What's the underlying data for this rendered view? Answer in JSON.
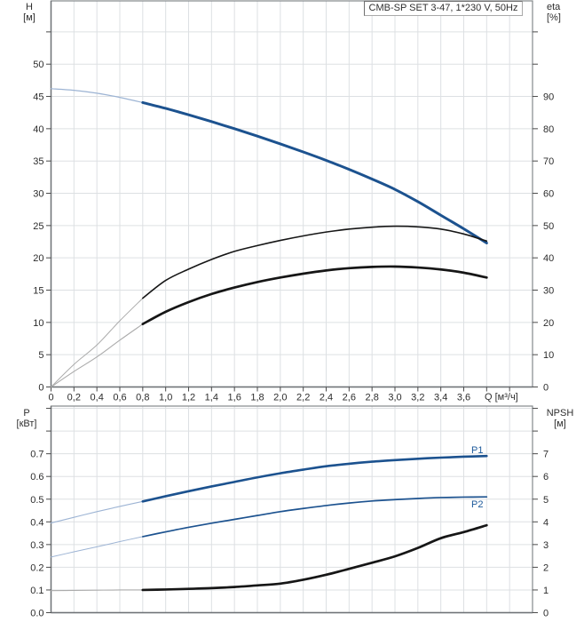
{
  "title": "CMB-SP SET 3-47, 1*230 V, 50Hz",
  "axis_names": {
    "top_left": {
      "name": "H",
      "unit": "[м]"
    },
    "top_right": {
      "name": "eta",
      "unit": "[%]"
    },
    "bottom_left": {
      "name": "P",
      "unit": "[кВт]"
    },
    "bottom_right": {
      "name": "NPSH",
      "unit": "[м]"
    },
    "flow_unit": "Q [м³/ч]"
  },
  "curve_labels": {
    "p1": "P1",
    "p2": "P2"
  },
  "colors": {
    "curve_blue": "#1c528f",
    "curve_blue_thin": "#9db4d4",
    "curve_black": "#161616",
    "curve_black_thin": "#ababab",
    "grid": "#dde0e3",
    "frame": "#84888b",
    "tick": "#4a4a4a",
    "text": "#2c2c2c",
    "label_blue": "#1d5a9b"
  },
  "chart_data": [
    {
      "type": "line",
      "title": "CMB-SP SET 3-47, 1*230 V, 50Hz — head and efficiency curves",
      "x": {
        "label": "Q [м³/ч]",
        "min": 0,
        "max": 4.2,
        "grid_step": 0.2,
        "tick_labels": [
          "0",
          "0,2",
          "0,4",
          "0,6",
          "0,8",
          "1,0",
          "1,2",
          "1,4",
          "1,6",
          "1,8",
          "2,0",
          "2,2",
          "2,4",
          "2,6",
          "2,8",
          "3,0",
          "3,2",
          "3,4",
          "3,6"
        ]
      },
      "y_left": {
        "label": "H [м]",
        "min": 0,
        "max": 59.8,
        "grid_step": 5,
        "tick_labels": [
          "0",
          "5",
          "10",
          "15",
          "20",
          "25",
          "30",
          "35",
          "40",
          "45",
          "50"
        ]
      },
      "y_right": {
        "label": "eta [%]",
        "min": 0,
        "max": 119.6,
        "tick_step": 10,
        "tick_labels": [
          "0",
          "10",
          "20",
          "30",
          "40",
          "50",
          "60",
          "70",
          "80",
          "90"
        ]
      },
      "grid": true,
      "series": [
        {
          "name": "H",
          "axis": "left",
          "style": "blue-thick",
          "thin_until": 0.8,
          "points": [
            [
              0,
              46.2
            ],
            [
              0.2,
              45.95
            ],
            [
              0.4,
              45.5
            ],
            [
              0.6,
              44.85
            ],
            [
              0.8,
              44.05
            ],
            [
              1.0,
              43.15
            ],
            [
              1.2,
              42.15
            ],
            [
              1.4,
              41.1
            ],
            [
              1.6,
              40.0
            ],
            [
              1.8,
              38.85
            ],
            [
              2.0,
              37.65
            ],
            [
              2.2,
              36.4
            ],
            [
              2.4,
              35.1
            ],
            [
              2.6,
              33.7
            ],
            [
              2.8,
              32.2
            ],
            [
              3.0,
              30.6
            ],
            [
              3.2,
              28.7
            ],
            [
              3.4,
              26.6
            ],
            [
              3.6,
              24.5
            ],
            [
              3.8,
              22.3
            ]
          ]
        },
        {
          "name": "eta-upper",
          "axis": "right",
          "style": "black-thin",
          "thin_until": 0.8,
          "points": [
            [
              0,
              0
            ],
            [
              0.2,
              7
            ],
            [
              0.4,
              13
            ],
            [
              0.6,
              20.5
            ],
            [
              0.8,
              27.5
            ],
            [
              1.0,
              33
            ],
            [
              1.2,
              36.5
            ],
            [
              1.4,
              39.5
            ],
            [
              1.6,
              42
            ],
            [
              1.8,
              43.8
            ],
            [
              2.0,
              45.4
            ],
            [
              2.2,
              46.8
            ],
            [
              2.4,
              48
            ],
            [
              2.6,
              48.9
            ],
            [
              2.8,
              49.5
            ],
            [
              3.0,
              49.8
            ],
            [
              3.2,
              49.6
            ],
            [
              3.4,
              48.9
            ],
            [
              3.6,
              47.4
            ],
            [
              3.8,
              45.2
            ]
          ]
        },
        {
          "name": "eta-lower",
          "axis": "right",
          "style": "black-thick",
          "thin_until": 0.8,
          "points": [
            [
              0,
              0
            ],
            [
              0.2,
              4.8
            ],
            [
              0.4,
              9.3
            ],
            [
              0.6,
              14.5
            ],
            [
              0.8,
              19.5
            ],
            [
              1.0,
              23.3
            ],
            [
              1.2,
              26.3
            ],
            [
              1.4,
              28.8
            ],
            [
              1.6,
              30.8
            ],
            [
              1.8,
              32.5
            ],
            [
              2.0,
              33.9
            ],
            [
              2.2,
              35.1
            ],
            [
              2.4,
              36.1
            ],
            [
              2.6,
              36.8
            ],
            [
              2.8,
              37.2
            ],
            [
              3.0,
              37.3
            ],
            [
              3.2,
              37.0
            ],
            [
              3.4,
              36.4
            ],
            [
              3.6,
              35.4
            ],
            [
              3.8,
              33.9
            ]
          ]
        }
      ]
    },
    {
      "type": "line",
      "title": "Power (P1, P2) and NPSH curves",
      "x": {
        "label": "",
        "min": 0,
        "max": 4.2,
        "grid_step": 0.2,
        "tick_labels": []
      },
      "y_left": {
        "label": "P [кВт]",
        "min": 0,
        "max": 0.91,
        "grid_step": 0.1,
        "tick_labels": [
          "0.0",
          "0.1",
          "0.2",
          "0.3",
          "0.4",
          "0.5",
          "0.6",
          "0.7"
        ]
      },
      "y_right": {
        "label": "NPSH [м]",
        "min": 0,
        "max": 9.1,
        "tick_step": 1,
        "tick_labels": [
          "0",
          "1",
          "2",
          "3",
          "4",
          "5",
          "6",
          "7"
        ]
      },
      "grid": true,
      "series": [
        {
          "name": "P1",
          "axis": "left",
          "style": "blue-thick2",
          "thin_until": 0.8,
          "points": [
            [
              0,
              0.395
            ],
            [
              0.2,
              0.42
            ],
            [
              0.4,
              0.445
            ],
            [
              0.6,
              0.468
            ],
            [
              0.8,
              0.49
            ],
            [
              1.0,
              0.513
            ],
            [
              1.2,
              0.535
            ],
            [
              1.4,
              0.556
            ],
            [
              1.6,
              0.576
            ],
            [
              1.8,
              0.596
            ],
            [
              2.0,
              0.614
            ],
            [
              2.2,
              0.63
            ],
            [
              2.4,
              0.645
            ],
            [
              2.6,
              0.656
            ],
            [
              2.8,
              0.665
            ],
            [
              3.0,
              0.672
            ],
            [
              3.2,
              0.678
            ],
            [
              3.4,
              0.683
            ],
            [
              3.6,
              0.687
            ],
            [
              3.8,
              0.69
            ]
          ]
        },
        {
          "name": "P2",
          "axis": "left",
          "style": "blue-medium",
          "thin_until": 0.8,
          "points": [
            [
              0,
              0.245
            ],
            [
              0.2,
              0.268
            ],
            [
              0.4,
              0.29
            ],
            [
              0.6,
              0.313
            ],
            [
              0.8,
              0.335
            ],
            [
              1.0,
              0.356
            ],
            [
              1.2,
              0.376
            ],
            [
              1.4,
              0.394
            ],
            [
              1.6,
              0.411
            ],
            [
              1.8,
              0.428
            ],
            [
              2.0,
              0.445
            ],
            [
              2.2,
              0.459
            ],
            [
              2.4,
              0.472
            ],
            [
              2.6,
              0.483
            ],
            [
              2.8,
              0.492
            ],
            [
              3.0,
              0.498
            ],
            [
              3.2,
              0.503
            ],
            [
              3.4,
              0.507
            ],
            [
              3.6,
              0.509
            ],
            [
              3.8,
              0.51
            ]
          ]
        },
        {
          "name": "NPSH",
          "axis": "right",
          "style": "black-thick",
          "thin_until": 0.8,
          "points": [
            [
              0,
              0.97
            ],
            [
              0.2,
              0.98
            ],
            [
              0.4,
              0.99
            ],
            [
              0.6,
              1.0
            ],
            [
              0.8,
              1.0
            ],
            [
              1.0,
              1.02
            ],
            [
              1.2,
              1.05
            ],
            [
              1.4,
              1.08
            ],
            [
              1.6,
              1.13
            ],
            [
              1.8,
              1.2
            ],
            [
              2.0,
              1.28
            ],
            [
              2.2,
              1.45
            ],
            [
              2.4,
              1.67
            ],
            [
              2.6,
              1.93
            ],
            [
              2.8,
              2.2
            ],
            [
              3.0,
              2.48
            ],
            [
              3.2,
              2.85
            ],
            [
              3.4,
              3.28
            ],
            [
              3.6,
              3.55
            ],
            [
              3.8,
              3.85
            ]
          ]
        }
      ]
    }
  ]
}
